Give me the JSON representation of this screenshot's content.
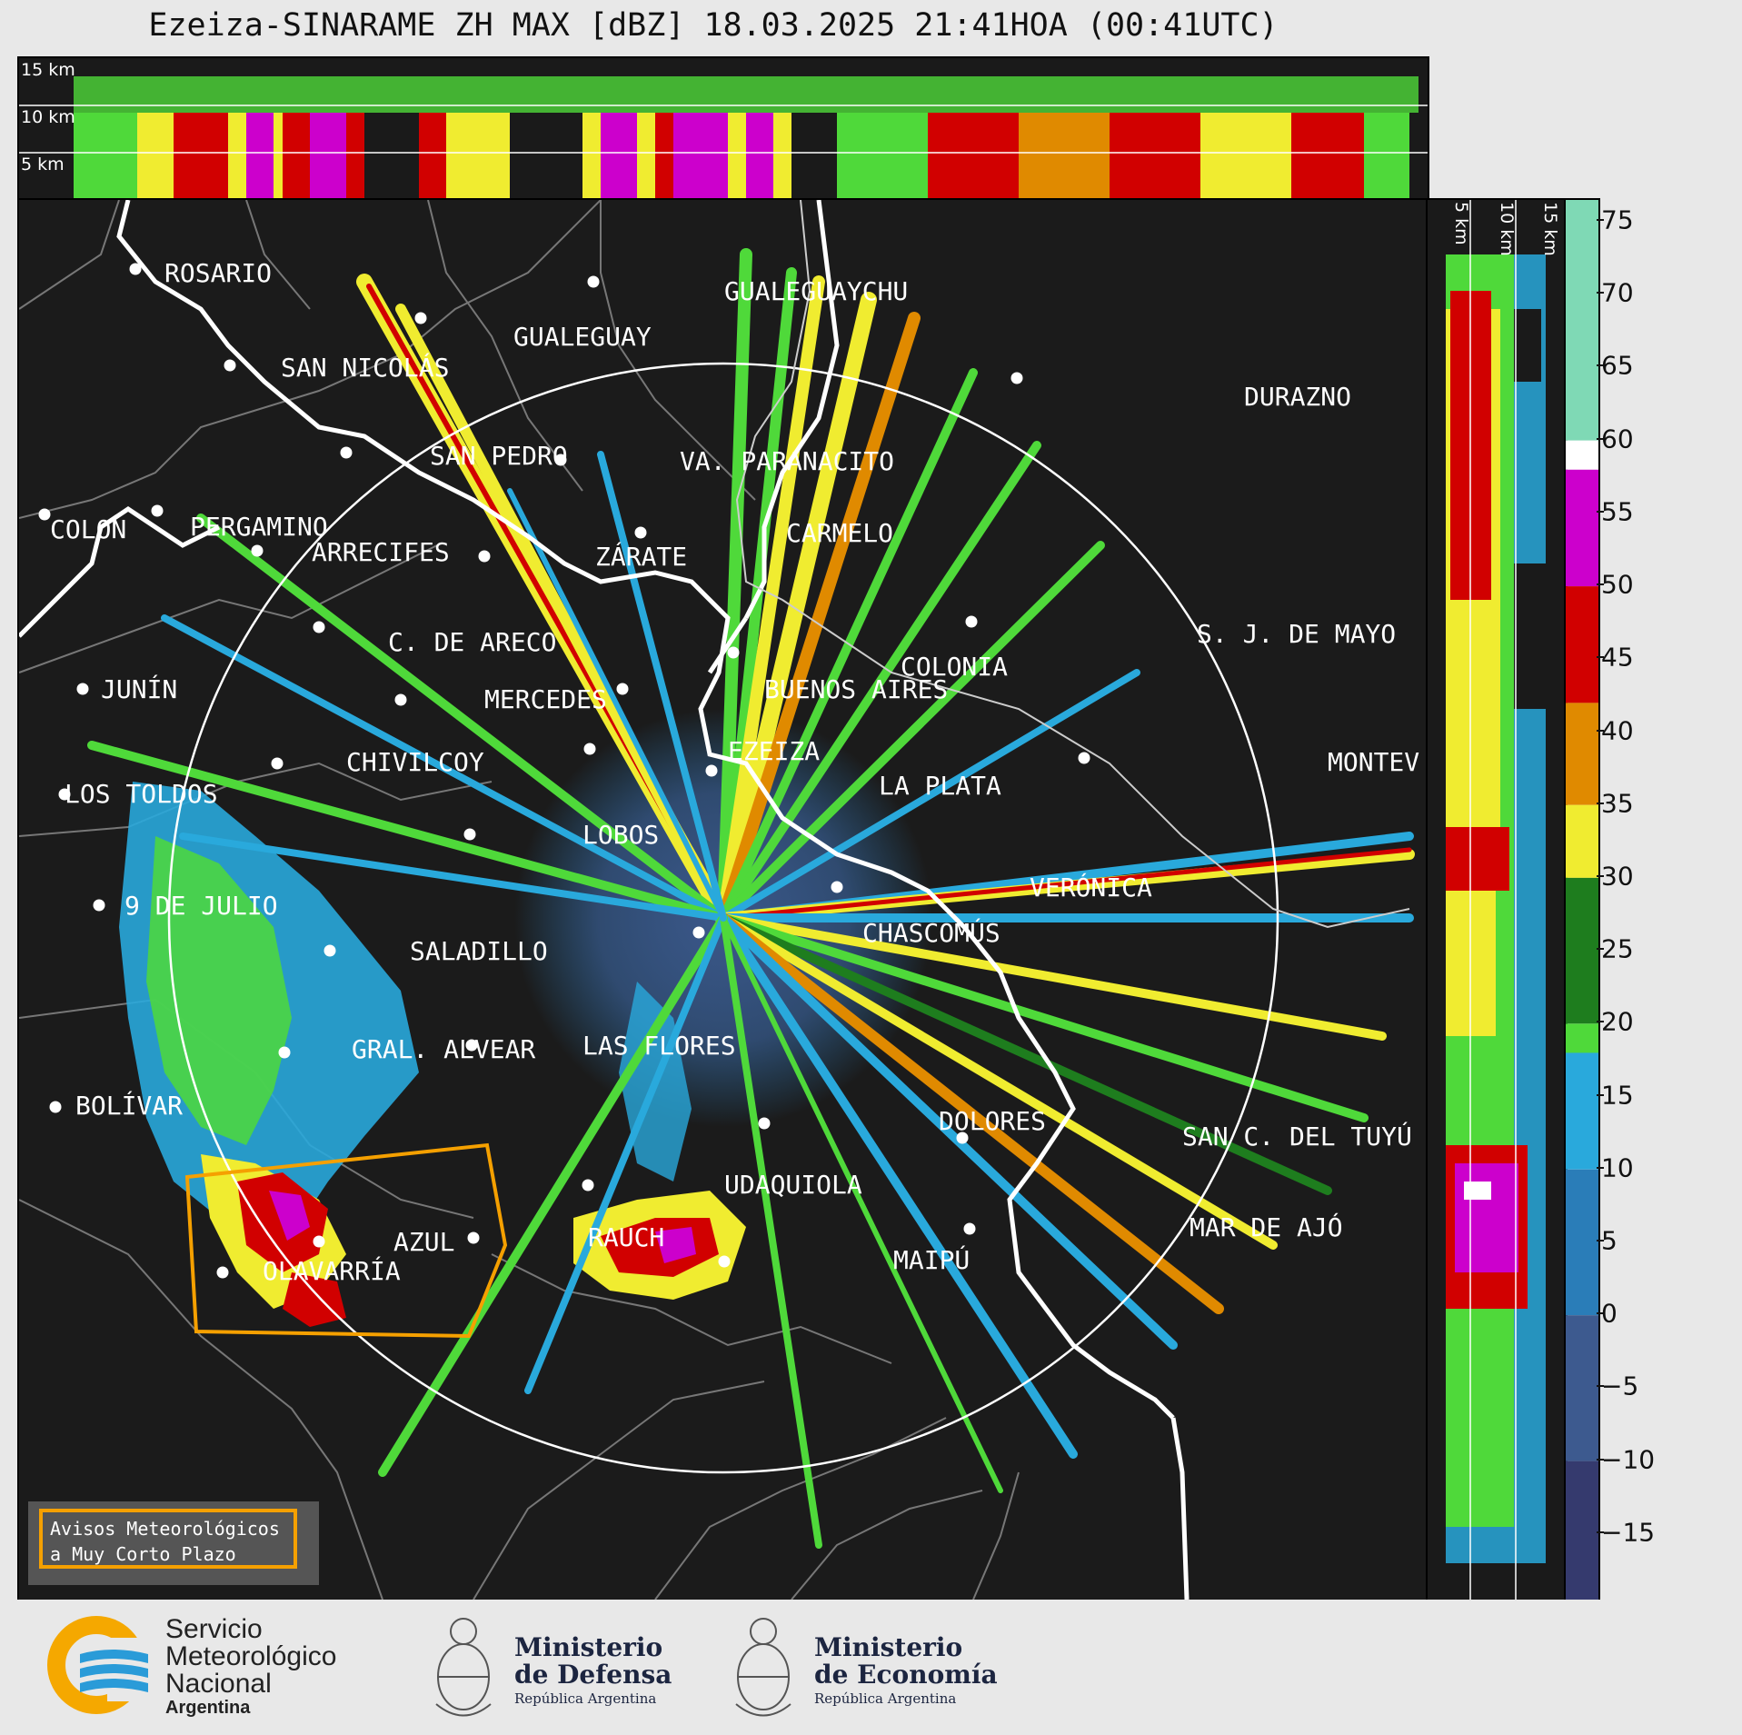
{
  "title": "Ezeiza-SINARAME ZH MAX [dBZ] 18.03.2025 21:41HOA (00:41UTC)",
  "top_panel": {
    "labels": [
      "15 km",
      "10 km",
      "5 km"
    ]
  },
  "right_panel": {
    "labels": [
      "5 km",
      "10 km",
      "15 km"
    ]
  },
  "colorbar": {
    "ticks": [
      "75",
      "70",
      "65",
      "60",
      "55",
      "50",
      "45",
      "40",
      "35",
      "30",
      "25",
      "20",
      "15",
      "10",
      "5",
      "0",
      "−5",
      "−10",
      "−15"
    ],
    "colors": {
      "high": "#7fd9b5",
      "white": "#ffffff",
      "magenta": "#cc00cc",
      "red": "#d10000",
      "orange": "#e08a00",
      "yellow": "#f0ec30",
      "dgreen": "#1e7d1e",
      "green": "#4fd93a",
      "lblue": "#29a9dc",
      "blue": "#2a7db8",
      "slate": "#3d5a8f",
      "navy": "#353a6e"
    }
  },
  "cities": [
    {
      "name": "ROSARIO"
    },
    {
      "name": "GUALEGUAYCHU"
    },
    {
      "name": "GUALEGUAY"
    },
    {
      "name": "SAN NICOLÁS"
    },
    {
      "name": "DURAZNO"
    },
    {
      "name": "SAN PEDRO"
    },
    {
      "name": "VA. PARANACITO"
    },
    {
      "name": "COLON"
    },
    {
      "name": "PERGAMINO"
    },
    {
      "name": "CARMELO"
    },
    {
      "name": "ARRECIFES"
    },
    {
      "name": "ZÁRATE"
    },
    {
      "name": "S. J. DE MAYO"
    },
    {
      "name": "C. DE ARECO"
    },
    {
      "name": "COLONIA"
    },
    {
      "name": "JUNÍN"
    },
    {
      "name": "BUENOS AIRES"
    },
    {
      "name": "MERCEDES"
    },
    {
      "name": "EZEIZA"
    },
    {
      "name": "CHIVILCOY"
    },
    {
      "name": "MONTEV"
    },
    {
      "name": "LA PLATA"
    },
    {
      "name": "LOS TOLDOS"
    },
    {
      "name": "LOBOS"
    },
    {
      "name": "VERÓNICA"
    },
    {
      "name": "9 DE JULIO"
    },
    {
      "name": "CHASCOMÚS"
    },
    {
      "name": "SALADILLO"
    },
    {
      "name": "GRAL. ALVEAR"
    },
    {
      "name": "LAS FLORES"
    },
    {
      "name": "BOLÍVAR"
    },
    {
      "name": "DOLORES"
    },
    {
      "name": "SAN C. DEL TUYÚ"
    },
    {
      "name": "UDAQUIOLA"
    },
    {
      "name": "AZUL"
    },
    {
      "name": "RAUCH"
    },
    {
      "name": "MAR DE AJÓ"
    },
    {
      "name": "OLAVARRÍA"
    },
    {
      "name": "MAIPÚ"
    }
  ],
  "avisos": {
    "line1": "Avisos Meteorológicos",
    "line2": "a Muy Corto Plazo"
  },
  "footer": {
    "smn": {
      "l1": "Servicio",
      "l2": "Meteorológico",
      "l3": "Nacional",
      "l4": "Argentina"
    },
    "defensa": {
      "l1": "Ministerio",
      "l2": "de Defensa",
      "l3": "República Argentina"
    },
    "economia": {
      "l1": "Ministerio",
      "l2": "de Economía",
      "l3": "República Argentina"
    }
  }
}
